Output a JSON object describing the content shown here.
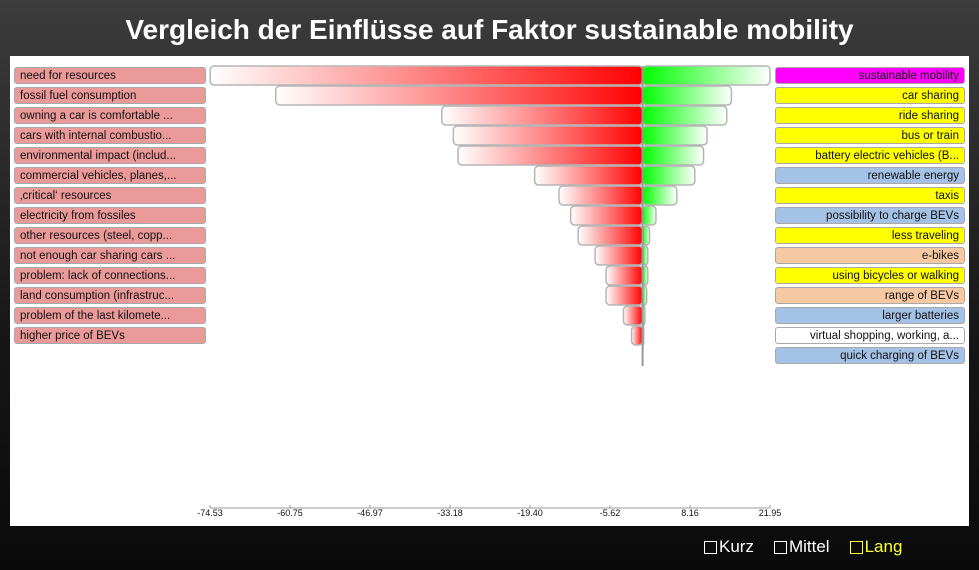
{
  "title": "Vergleich der Einflüsse auf Faktor sustainable mobility",
  "legend": [
    {
      "label": "Kurz",
      "checked": false,
      "active": false
    },
    {
      "label": "Mittel",
      "checked": false,
      "active": false
    },
    {
      "label": "Lang",
      "checked": false,
      "active": true
    }
  ],
  "colors": {
    "negative": "#ff0000",
    "positive": "#00ff00",
    "left_label_bg": "#eb9a9a",
    "right_yellow": "#ffff00",
    "right_blue": "#a4c2e6",
    "right_peach": "#f7c9a2",
    "right_magenta": "#ff00ff",
    "right_white": "#ffffff"
  },
  "chart_data": {
    "type": "bar",
    "title": "Vergleich der Einflüsse auf Faktor sustainable mobility",
    "xlim": [
      -74.53,
      21.95
    ],
    "x_ticks": [
      "-74.53",
      "-60.75",
      "-46.97",
      "-33.18",
      "-19.40",
      "-5.62",
      "8.16",
      "21.95"
    ],
    "negative_series": {
      "labels": [
        "need for resources",
        "fossil fuel consumption",
        "owning a car is comfortable ...",
        "cars with internal combustio...",
        "environmental impact (includ...",
        "commercial vehicles, planes,...",
        "‚critical‘ resources",
        "electricity from fossiles",
        "other resources (steel, copp...",
        "not enough car sharing cars ...",
        "problem: lack of connections...",
        "land consumption (infrastruc...",
        "problem of the last kilomete...",
        "higher price of BEVs"
      ],
      "values": [
        -74.5,
        -63.2,
        -34.6,
        -32.6,
        -31.8,
        -18.6,
        -14.4,
        -12.4,
        -11.1,
        -8.2,
        -6.3,
        -6.3,
        -3.3,
        -1.9
      ]
    },
    "positive_series": {
      "labels": [
        "sustainable mobility",
        "car sharing",
        "ride sharing",
        "bus or train",
        "battery electric vehicles (B...",
        "renewable energy",
        "taxis",
        "possibility to charge BEVs",
        "less traveling",
        "e-bikes",
        "using bicycles or walking",
        "range of BEVs",
        "larger batteries",
        "virtual shopping, working, a...",
        "quick charging of BEVs"
      ],
      "categories": [
        "magenta",
        "yellow",
        "yellow",
        "yellow",
        "yellow",
        "blue",
        "yellow",
        "blue",
        "yellow",
        "peach",
        "yellow",
        "peach",
        "blue",
        "white",
        "blue"
      ],
      "values": [
        21.95,
        15.3,
        14.5,
        11.1,
        10.5,
        9.0,
        5.9,
        2.3,
        1.2,
        0.9,
        0.9,
        0.7,
        0.4,
        0.2,
        0.0
      ]
    }
  }
}
